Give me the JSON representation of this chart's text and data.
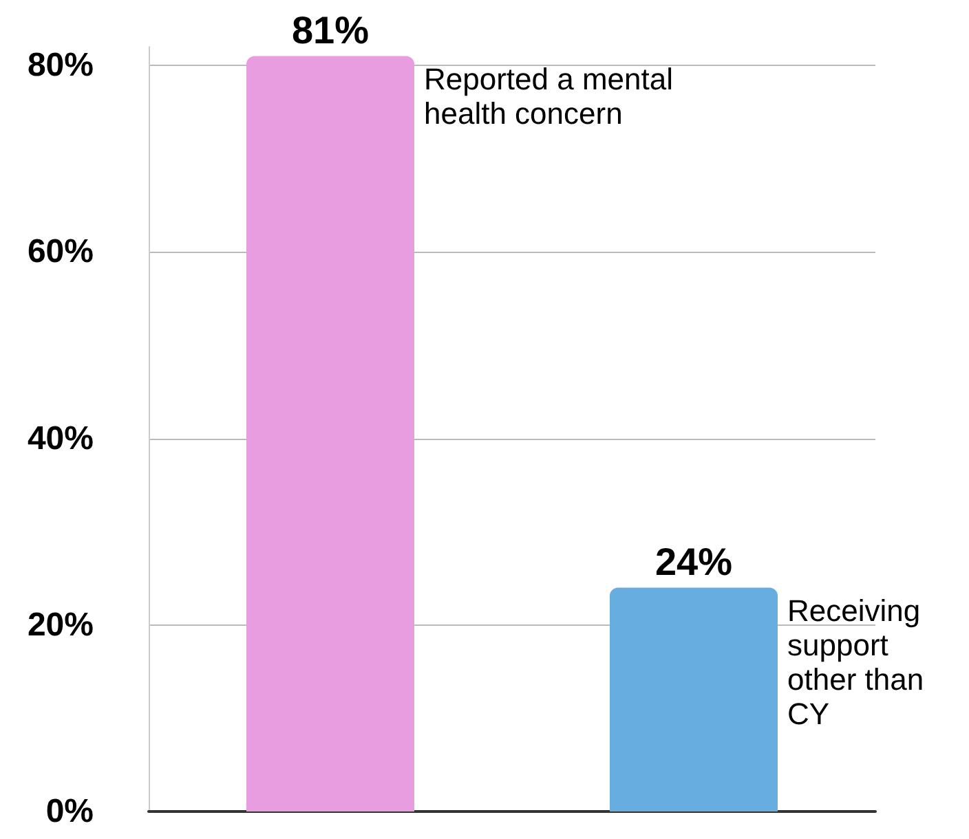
{
  "chart_data": {
    "type": "bar",
    "categories": [
      null,
      null
    ],
    "values": [
      81,
      24
    ],
    "colors": [
      "#e79ddf",
      "#67ade0"
    ],
    "ylim": [
      0,
      82
    ],
    "yticks": [
      {
        "value": 0,
        "label": "0%"
      },
      {
        "value": 20,
        "label": "20%"
      },
      {
        "value": 40,
        "label": "40%"
      },
      {
        "value": 60,
        "label": "60%"
      },
      {
        "value": 80,
        "label": "80%"
      }
    ],
    "grid": "y",
    "data_labels": true,
    "value_labels": [
      "81%",
      "24%"
    ],
    "annotations": [
      "Reported a mental health concern",
      "Receiving support other than CY"
    ]
  }
}
